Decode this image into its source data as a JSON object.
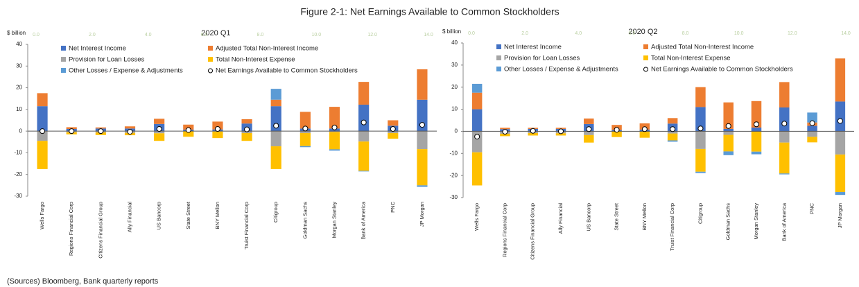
{
  "title": "Figure 2-1: Net Earnings Available to Common Stockholders",
  "source": "(Sources) Bloomberg, Bank quarterly reports",
  "chart_data": [
    {
      "type": "bar",
      "stacked": true,
      "title": "2020 Q1",
      "y_label": "$ billion",
      "categories": [
        "Wells Fargo",
        "Regions Financial Corp",
        "Citizens Financial Group",
        "Ally Financial",
        "US Bancorp",
        "State Street",
        "BNY Mellon",
        "Truist Financial Corp",
        "Citigroup",
        "Goldman Sachs",
        "Morgan Stanley",
        "Bank of America",
        "PNC",
        "JP Morgan"
      ],
      "series": [
        {
          "name": "Net Interest Income",
          "color": "#4472c4",
          "values": [
            11.5,
            1.0,
            1.2,
            1.2,
            3.3,
            0.7,
            0.8,
            3.5,
            11.5,
            1.2,
            1.2,
            12.2,
            2.5,
            14.5
          ]
        },
        {
          "name": "Adjusted Total Non-Interest Income",
          "color": "#ed7d31",
          "values": [
            6.0,
            0.8,
            0.5,
            1.0,
            2.4,
            2.3,
            3.6,
            2.0,
            3.0,
            7.7,
            10.0,
            10.5,
            2.5,
            14.0
          ]
        },
        {
          "name": "Provision for Loan Losses",
          "color": "#a5a5a5",
          "values": [
            -4.5,
            -0.5,
            -0.6,
            -0.8,
            -1.0,
            -0.1,
            -0.2,
            -0.9,
            -7.0,
            -0.9,
            -0.4,
            -4.8,
            -0.9,
            -8.3
          ]
        },
        {
          "name": "Total Non-Interest Expense",
          "color": "#ffc000",
          "values": [
            -13.0,
            -1.0,
            -1.2,
            -1.1,
            -3.5,
            -2.5,
            -3.0,
            -3.6,
            -10.5,
            -6.0,
            -8.0,
            -13.5,
            -2.6,
            -16.7
          ]
        },
        {
          "name": "Other Losses / Expense & Adjustments",
          "color": "#5b9bd5",
          "values": [
            0,
            0,
            0,
            0,
            0,
            0,
            0,
            0,
            5.0,
            -0.5,
            -0.6,
            -0.3,
            0,
            -0.7
          ]
        }
      ],
      "dots": {
        "name": "Net Earnings Available to Common Stockholders",
        "values": [
          0.0,
          0.0,
          0.0,
          -0.3,
          1.0,
          0.5,
          1.0,
          0.8,
          2.5,
          1.2,
          1.7,
          4.0,
          1.0,
          2.9
        ]
      },
      "ylim": [
        -30,
        40
      ],
      "yticks": [
        -30,
        -20,
        -10,
        0,
        10,
        20,
        30,
        40
      ],
      "x2lim": [
        0,
        14
      ],
      "x2ticks": [
        {
          "value": 0,
          "label": "0.0"
        },
        {
          "value": 2,
          "label": "2.0"
        },
        {
          "value": 4,
          "label": "4.0"
        },
        {
          "value": 6,
          "label": "6.0"
        },
        {
          "value": 8,
          "label": "8.0"
        },
        {
          "value": 10,
          "label": "10.0"
        },
        {
          "value": 12,
          "label": "12.0"
        },
        {
          "value": 14,
          "label": "14.0"
        }
      ]
    },
    {
      "type": "bar",
      "stacked": true,
      "title": "2020 Q2",
      "y_label": "$ billion",
      "categories": [
        "Wells Fargo",
        "Regions Financial Corp",
        "Citizens Financial Group",
        "Ally Financial",
        "US Bancorp",
        "State Street",
        "BNY Mellon",
        "Truist Financial Corp",
        "Citigroup",
        "Goldman Sachs",
        "Morgan Stanley",
        "Bank of America",
        "PNC",
        "JP Morgan"
      ],
      "series": [
        {
          "name": "Net Interest Income",
          "color": "#4472c4",
          "values": [
            10.0,
            1.0,
            1.1,
            1.1,
            3.3,
            0.6,
            0.8,
            3.5,
            11.0,
            1.1,
            1.7,
            10.8,
            2.5,
            13.5
          ]
        },
        {
          "name": "Adjusted Total Non-Interest Income",
          "color": "#ed7d31",
          "values": [
            7.5,
            0.6,
            0.5,
            0.5,
            2.5,
            2.3,
            2.8,
            2.5,
            9.0,
            12.0,
            12.0,
            11.5,
            1.5,
            19.5
          ]
        },
        {
          "name": "Provision for Loan Losses",
          "color": "#a5a5a5",
          "values": [
            -9.5,
            -1.1,
            -0.8,
            -0.9,
            -1.7,
            -0.1,
            -0.2,
            -1.0,
            -8.0,
            -1.6,
            -0.2,
            -5.1,
            -2.5,
            -10.5
          ]
        },
        {
          "name": "Total Non-Interest Expense",
          "color": "#ffc000",
          "values": [
            -15.0,
            -1.1,
            -1.1,
            -1.0,
            -3.4,
            -2.5,
            -2.7,
            -3.1,
            -10.3,
            -7.5,
            -9.0,
            -14.0,
            -2.5,
            -17.0
          ]
        },
        {
          "name": "Other Losses / Expense & Adjustments",
          "color": "#5b9bd5",
          "values": [
            4.0,
            0,
            0,
            0,
            0,
            0,
            0,
            -0.6,
            -0.6,
            -1.7,
            -1.2,
            -0.4,
            4.5,
            -1.3
          ]
        }
      ],
      "dots": {
        "name": "Net Earnings Available to Common Stockholders",
        "values": [
          -2.4,
          -0.2,
          0.2,
          0.0,
          1.0,
          0.7,
          1.0,
          1.0,
          1.3,
          2.4,
          3.2,
          3.5,
          3.7,
          4.7
        ]
      },
      "ylim": [
        -30,
        40
      ],
      "yticks": [
        -30,
        -20,
        -10,
        0,
        10,
        20,
        30,
        40
      ],
      "x2lim": [
        0,
        14
      ],
      "x2ticks": [
        {
          "value": 0,
          "label": "0.0"
        },
        {
          "value": 2,
          "label": "2.0"
        },
        {
          "value": 4,
          "label": "4.0"
        },
        {
          "value": 6,
          "label": "6.0"
        },
        {
          "value": 8,
          "label": "8.0"
        },
        {
          "value": 10,
          "label": "10.0"
        },
        {
          "value": 12,
          "label": "12.0"
        },
        {
          "value": 14,
          "label": "14.0"
        }
      ]
    }
  ]
}
